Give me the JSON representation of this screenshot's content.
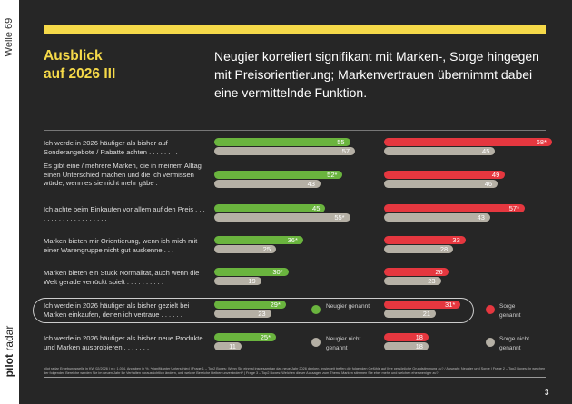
{
  "side": {
    "wave": "Welle 69",
    "logo_bold": "pilot",
    "logo_light": "radar"
  },
  "header": {
    "title_line1": "Ausblick",
    "title_line2": "auf 2026 III",
    "subtitle": "Neugier korreliert signifikant mit Marken-, Sorge hingegen mit Preisorientierung; Markenvertrauen übernimmt dabei eine vermittelnde Funktion."
  },
  "colors": {
    "neugier": "#6ab43e",
    "sorge": "#e5373f",
    "nicht": "#b5b0a5",
    "accent": "#f5d949",
    "background": "#262626"
  },
  "chart_data": {
    "type": "bar",
    "orientation": "horizontal",
    "xlim": [
      0,
      100
    ],
    "categories": [
      "Ich werde in 2026 häufiger als bisher auf Sonderangebote / Rabatte achten . . . . . . . .",
      "Es gibt eine / mehrere Marken, die in meinem Alltag einen Unterschied machen und die ich vermissen würde, wenn es sie nicht mehr gäbe .",
      "Ich achte beim Einkaufen vor allem auf den Preis . . . . . . . . . . . . . . . . . . . .",
      "Marken bieten mir Orientierung, wenn ich mich mit einer Warengruppe nicht gut auskenne . . .",
      "Marken bieten ein Stück Normalität, auch wenn die Welt gerade verrückt spielt . . . . . . . . . .",
      "Ich werde in 2026 häufiger als bisher gezielt bei Marken einkaufen, denen ich vertraue . . . . . .",
      "Ich werde in 2026 häufiger als bisher neue Produkte und Marken ausprobieren . . . . . . ."
    ],
    "highlighted_index": 5,
    "series": [
      {
        "name": "Neugier genannt",
        "values": [
          55,
          52,
          45,
          36,
          30,
          29,
          25
        ],
        "labels": [
          "55",
          "52*",
          "45",
          "36*",
          "30*",
          "29*",
          "25*"
        ]
      },
      {
        "name": "Neugier nicht genannt",
        "values": [
          57,
          43,
          55,
          25,
          19,
          23,
          11
        ],
        "labels": [
          "57",
          "43",
          "55*",
          "25",
          "19",
          "23",
          "11"
        ]
      },
      {
        "name": "Sorge genannt",
        "values": [
          68,
          49,
          57,
          33,
          26,
          31,
          18
        ],
        "labels": [
          "68*",
          "49",
          "57*",
          "33",
          "26",
          "31*",
          "18"
        ]
      },
      {
        "name": "Sorge nicht genannt",
        "values": [
          45,
          46,
          43,
          28,
          23,
          21,
          18
        ],
        "labels": [
          "45",
          "46",
          "43",
          "28",
          "23",
          "21",
          "18"
        ]
      }
    ]
  },
  "legend": {
    "neugier": "Neugier genannt",
    "neugier_nicht": "Neugier nicht genannt",
    "sorge": "Sorge genannt",
    "sorge_nicht": "Sorge nicht genannt"
  },
  "footer": {
    "note": "pilot radar Erhebungswelle in KW 02/2026 | n = 1.004, Angaben in %, *signifikanter Unterschied | Frage 1 – Top2 Boxes: Wenn Sie einmal insgesamt an das neue Jahr 2026 denken, inwieweit treffen die folgenden Gefühle auf Ihre persönliche Grundstimmung zu? / Auswahl: Neugier und Sorge | Frage 2 – Top2 Boxes: In welchen der folgenden Bereiche werden Sie im neuen Jahr Ihr Verhalten voraussichtlich ändern, und welche Bereiche bleiben unverändert? | Frage 3 – Top2 Boxes: Welchen dieser Aussagen zum Thema Marken stimmen Sie eher mehr, und welchen eher weniger zu?",
    "page": "3"
  }
}
